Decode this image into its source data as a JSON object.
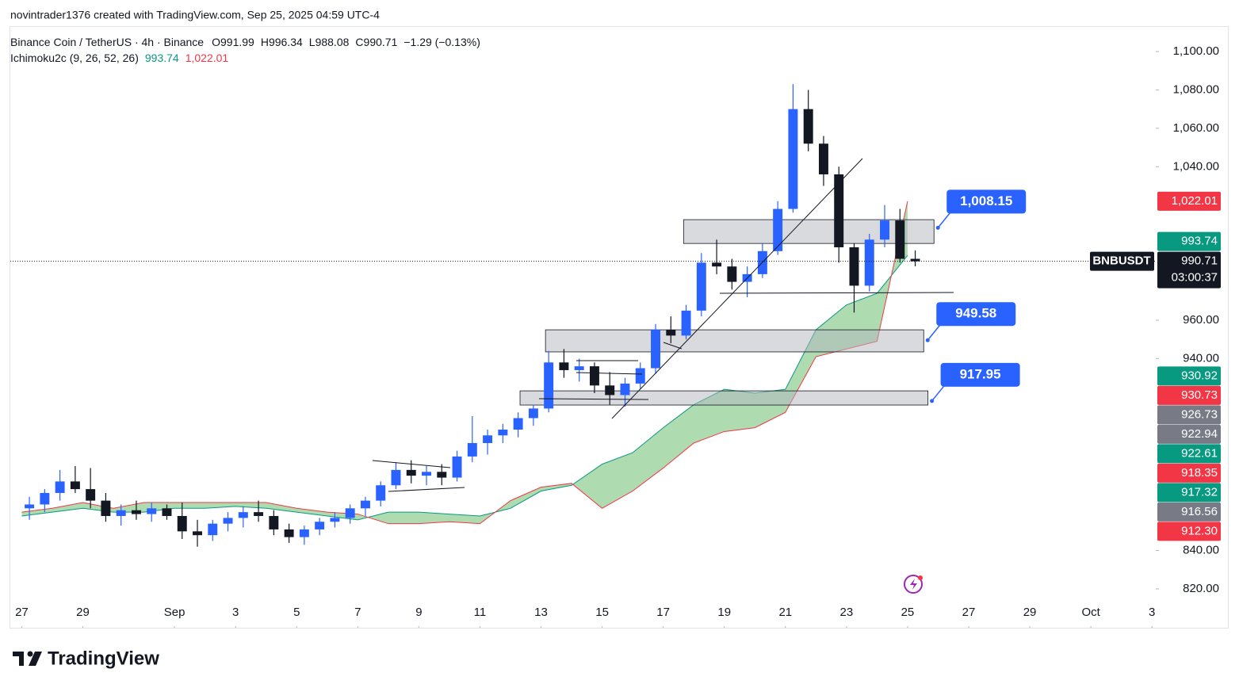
{
  "header": {
    "attribution": "novintrader1376 created with TradingView.com, Sep 25, 2025 04:59 UTC-4"
  },
  "footer": {
    "brand": "TradingView"
  },
  "chart_data": {
    "type": "candlestick",
    "title": "Binance Coin / TetherUS · 4h · Binance",
    "ohlc_legend": [
      {
        "key": "O",
        "value": "991.99"
      },
      {
        "key": "H",
        "value": "996.34"
      },
      {
        "key": "L",
        "value": "988.08"
      },
      {
        "key": "C",
        "value": "990.71"
      }
    ],
    "change": "−1.29 (−0.13%)",
    "up_color": "#2962ff",
    "down_color": "#131722",
    "x": [
      "2025-08-27T00:00",
      "2025-08-27T12:00",
      "2025-08-28T00:00",
      "2025-08-28T12:00",
      "2025-08-29T00:00",
      "2025-08-29T12:00",
      "2025-08-30T00:00",
      "2025-08-30T12:00",
      "2025-08-31T00:00",
      "2025-08-31T12:00",
      "2025-09-01T00:00",
      "2025-09-01T12:00",
      "2025-09-02T00:00",
      "2025-09-02T12:00",
      "2025-09-03T00:00",
      "2025-09-03T12:00",
      "2025-09-04T00:00",
      "2025-09-04T12:00",
      "2025-09-05T00:00",
      "2025-09-05T12:00",
      "2025-09-06T00:00",
      "2025-09-06T12:00",
      "2025-09-07T00:00",
      "2025-09-07T12:00",
      "2025-09-08T00:00",
      "2025-09-08T12:00",
      "2025-09-09T00:00",
      "2025-09-09T12:00",
      "2025-09-10T00:00",
      "2025-09-10T12:00",
      "2025-09-11T00:00",
      "2025-09-11T12:00",
      "2025-09-12T00:00",
      "2025-09-12T12:00",
      "2025-09-13T00:00",
      "2025-09-13T12:00",
      "2025-09-14T00:00",
      "2025-09-14T12:00",
      "2025-09-15T00:00",
      "2025-09-15T12:00",
      "2025-09-16T00:00",
      "2025-09-16T12:00",
      "2025-09-17T00:00",
      "2025-09-17T12:00",
      "2025-09-18T00:00",
      "2025-09-18T12:00",
      "2025-09-19T00:00",
      "2025-09-19T12:00",
      "2025-09-20T00:00",
      "2025-09-20T12:00",
      "2025-09-21T00:00",
      "2025-09-21T12:00",
      "2025-09-22T00:00",
      "2025-09-22T12:00",
      "2025-09-23T00:00",
      "2025-09-23T12:00",
      "2025-09-24T00:00",
      "2025-09-24T12:00",
      "2025-09-25T00:00"
    ],
    "open": [
      862,
      864,
      870,
      876,
      872,
      866,
      858,
      861,
      859,
      862,
      858,
      850,
      848,
      854,
      857,
      860,
      858,
      851,
      847,
      851,
      855,
      857,
      862,
      866,
      874,
      882,
      879,
      881,
      878,
      889,
      896,
      900,
      903,
      909,
      914,
      938,
      934,
      936,
      926,
      921,
      927,
      935,
      955,
      952,
      965,
      990,
      988,
      980,
      984,
      996,
      1018,
      1070,
      1052,
      1036,
      998,
      978,
      1002,
      1012,
      991.99
    ],
    "high": [
      868,
      872,
      882,
      884,
      883,
      870,
      864,
      866,
      865,
      864,
      865,
      856,
      856,
      860,
      863,
      866,
      861,
      854,
      853,
      857,
      860,
      864,
      868,
      876,
      886,
      887,
      884,
      885,
      892,
      910,
      903,
      906,
      912,
      916,
      944,
      945,
      940,
      938,
      933,
      930,
      938,
      958,
      962,
      968,
      995,
      1002,
      992,
      988,
      1000,
      1022,
      1083,
      1080,
      1056,
      1040,
      1000,
      1005,
      1020,
      1018,
      996.34
    ],
    "low": [
      856,
      860,
      866,
      870,
      862,
      855,
      853,
      856,
      855,
      856,
      846,
      842,
      845,
      850,
      852,
      855,
      848,
      844,
      843,
      848,
      852,
      854,
      858,
      863,
      872,
      875,
      874,
      874,
      876,
      886,
      890,
      896,
      899,
      905,
      912,
      930,
      928,
      922,
      916,
      915,
      924,
      932,
      948,
      950,
      962,
      984,
      976,
      972,
      982,
      994,
      1016,
      1048,
      1030,
      990,
      964,
      975,
      998,
      990,
      988.08
    ],
    "close": [
      864,
      870,
      876,
      872,
      866,
      858,
      861,
      859,
      862,
      858,
      850,
      848,
      854,
      857,
      860,
      858,
      851,
      847,
      851,
      855,
      857,
      862,
      866,
      874,
      882,
      879,
      881,
      878,
      889,
      896,
      900,
      903,
      909,
      914,
      938,
      934,
      936,
      926,
      921,
      927,
      935,
      955,
      952,
      965,
      990,
      988,
      980,
      984,
      996,
      1018,
      1070,
      1052,
      1036,
      998,
      978,
      1002,
      1012,
      992,
      990.71
    ],
    "indicator": {
      "name": "Ichimoku2c (9, 26, 52, 26)",
      "x": [
        "2025-08-27T00:00",
        "2025-08-28T00:00",
        "2025-08-29T00:00",
        "2025-08-30T00:00",
        "2025-08-31T00:00",
        "2025-09-01T00:00",
        "2025-09-02T00:00",
        "2025-09-03T00:00",
        "2025-09-04T00:00",
        "2025-09-05T00:00",
        "2025-09-06T00:00",
        "2025-09-07T00:00",
        "2025-09-08T00:00",
        "2025-09-09T00:00",
        "2025-09-10T00:00",
        "2025-09-11T00:00",
        "2025-09-12T00:00",
        "2025-09-13T00:00",
        "2025-09-14T00:00",
        "2025-09-15T00:00",
        "2025-09-16T00:00",
        "2025-09-17T00:00",
        "2025-09-18T00:00",
        "2025-09-19T00:00",
        "2025-09-20T00:00",
        "2025-09-21T00:00",
        "2025-09-22T00:00",
        "2025-09-23T00:00",
        "2025-09-24T00:00",
        "2025-09-25T00:00"
      ],
      "span_a": [
        858,
        860,
        862,
        860,
        860,
        862,
        862,
        863,
        862,
        860,
        858,
        856,
        860,
        860,
        859,
        858,
        862,
        871,
        874,
        885,
        891,
        904,
        916,
        924,
        922,
        924,
        955,
        968,
        974,
        993.74
      ],
      "span_b": [
        860,
        862,
        865,
        862,
        865,
        865,
        865,
        865,
        865,
        862,
        860,
        859,
        854,
        854,
        855,
        854,
        866,
        873,
        875,
        862,
        871,
        883,
        896,
        902,
        904,
        912,
        941,
        945,
        949,
        1022.01
      ],
      "span_a_label": "993.74",
      "span_b_label": "1,022.01",
      "span_a_color": "#089981",
      "span_b_color": "#f23645",
      "cloud_color": "#4caf50"
    },
    "last_price": {
      "value": 990.71,
      "label": "990.71"
    },
    "symbol": "BNBUSDT",
    "countdown": "03:00:37",
    "zones": [
      {
        "top": 1012.4,
        "bottom": 1000.0,
        "from": "2025-09-17T16:00",
        "to": "2025-09-25T20:45",
        "callout": 1008.15,
        "callout_label": "1,008.15"
      },
      {
        "top": 955.0,
        "bottom": 943.5,
        "from": "2025-09-13T03:30",
        "to": "2025-09-25T12:40",
        "callout": 949.58,
        "callout_label": "949.58"
      },
      {
        "top": 923.2,
        "bottom": 915.8,
        "from": "2025-09-12T07:30",
        "to": "2025-09-25T16:00",
        "callout": 917.95,
        "callout_label": "917.95"
      }
    ],
    "price_labels": [
      {
        "value": 1022.01,
        "label": "1,022.01",
        "color": "#f23645"
      },
      {
        "value": 993.74,
        "label": "993.74",
        "color": "#089981"
      },
      {
        "value": 930.92,
        "label": "930.92",
        "color": "#089981"
      },
      {
        "value": 930.73,
        "label": "930.73",
        "color": "#f23645"
      },
      {
        "value": 926.73,
        "label": "926.73",
        "color": "#787b86"
      },
      {
        "value": 922.94,
        "label": "922.94",
        "color": "#787b86"
      },
      {
        "value": 922.61,
        "label": "922.61",
        "color": "#089981"
      },
      {
        "value": 918.35,
        "label": "918.35",
        "color": "#f23645"
      },
      {
        "value": 917.32,
        "label": "917.32",
        "color": "#089981"
      },
      {
        "value": 916.56,
        "label": "916.56",
        "color": "#787b86"
      },
      {
        "value": 912.3,
        "label": "912.30",
        "color": "#f23645"
      }
    ],
    "ylim": [
      820,
      1100
    ],
    "yticks": [
      {
        "value": 820,
        "label": "820.00"
      },
      {
        "value": 840,
        "label": "840.00"
      },
      {
        "value": 940,
        "label": "940.00"
      },
      {
        "value": 960,
        "label": "960.00"
      },
      {
        "value": 1040,
        "label": "1,040.00"
      },
      {
        "value": 1060,
        "label": "1,060.00"
      },
      {
        "value": 1080,
        "label": "1,080.00"
      },
      {
        "value": 1100,
        "label": "1,100.00"
      }
    ],
    "xlim": [
      "2025-08-26T15:00",
      "2025-10-03T03:00"
    ],
    "xticks": [
      {
        "value": "2025-08-27T00:00",
        "label": "27"
      },
      {
        "value": "2025-08-29T00:00",
        "label": "29"
      },
      {
        "value": "2025-09-01T00:00",
        "label": "Sep"
      },
      {
        "value": "2025-09-03T00:00",
        "label": "3"
      },
      {
        "value": "2025-09-05T00:00",
        "label": "5"
      },
      {
        "value": "2025-09-07T00:00",
        "label": "7"
      },
      {
        "value": "2025-09-09T00:00",
        "label": "9"
      },
      {
        "value": "2025-09-11T00:00",
        "label": "11"
      },
      {
        "value": "2025-09-13T00:00",
        "label": "13"
      },
      {
        "value": "2025-09-15T00:00",
        "label": "15"
      },
      {
        "value": "2025-09-17T00:00",
        "label": "17"
      },
      {
        "value": "2025-09-19T00:00",
        "label": "19"
      },
      {
        "value": "2025-09-21T00:00",
        "label": "21"
      },
      {
        "value": "2025-09-23T00:00",
        "label": "23"
      },
      {
        "value": "2025-09-25T00:00",
        "label": "25"
      },
      {
        "value": "2025-09-27T00:00",
        "label": "27"
      },
      {
        "value": "2025-09-29T00:00",
        "label": "29"
      },
      {
        "value": "2025-10-01T00:00",
        "label": "Oct"
      },
      {
        "value": "2025-10-03T00:00",
        "label": "3"
      }
    ]
  }
}
